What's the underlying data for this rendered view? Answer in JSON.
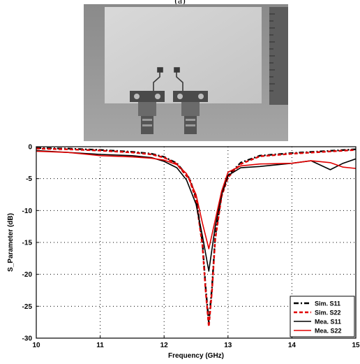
{
  "figure": {
    "label": "(a)"
  },
  "photo": {
    "icon": "antenna-prototype-photo"
  },
  "chart_data": {
    "type": "line",
    "title": "",
    "xlabel": "Frequency (GHz)",
    "ylabel": "S_Parameter (dB)",
    "xlim": [
      10,
      15
    ],
    "ylim": [
      -30,
      0
    ],
    "xticks": [
      10,
      11,
      12,
      13,
      14,
      15
    ],
    "yticks": [
      0,
      -5,
      -10,
      -15,
      -20,
      -25,
      -30
    ],
    "grid": "dotted",
    "legend_position": "bottom-right",
    "series": [
      {
        "name": "Sim. S11",
        "color": "#000000",
        "dash": "dashdot",
        "x": [
          10,
          10.5,
          11,
          11.5,
          11.8,
          12,
          12.2,
          12.4,
          12.5,
          12.6,
          12.65,
          12.7,
          12.75,
          12.8,
          12.9,
          13,
          13.2,
          13.5,
          14,
          14.5,
          15
        ],
        "y": [
          -0.2,
          -0.3,
          -0.5,
          -0.8,
          -1.1,
          -1.6,
          -2.6,
          -5,
          -8,
          -15,
          -22,
          -27.5,
          -22,
          -14,
          -7.5,
          -4.5,
          -2.5,
          -1.4,
          -1,
          -0.7,
          -0.4
        ]
      },
      {
        "name": "Sim. S22",
        "color": "#e00000",
        "dash": "dashed",
        "x": [
          10,
          10.5,
          11,
          11.5,
          11.8,
          12,
          12.2,
          12.4,
          12.5,
          12.6,
          12.65,
          12.7,
          12.75,
          12.8,
          12.9,
          13,
          13.2,
          13.5,
          14,
          14.5,
          15
        ],
        "y": [
          -0.3,
          -0.4,
          -0.6,
          -0.9,
          -1.2,
          -1.7,
          -2.7,
          -5.2,
          -8.3,
          -15.5,
          -22.5,
          -28.2,
          -22.5,
          -14.5,
          -7.8,
          -4.8,
          -2.7,
          -1.5,
          -1.1,
          -0.8,
          -0.5
        ]
      },
      {
        "name": "Mea. S11",
        "color": "#000000",
        "dash": "solid",
        "x": [
          10,
          10.5,
          11,
          11.5,
          11.8,
          12,
          12.2,
          12.35,
          12.5,
          12.6,
          12.7,
          12.8,
          12.9,
          13,
          13.2,
          13.5,
          14,
          14.3,
          14.6,
          14.8,
          15
        ],
        "y": [
          -0.6,
          -0.9,
          -1.2,
          -1.4,
          -1.7,
          -2.3,
          -3.3,
          -5.2,
          -9,
          -14,
          -19.5,
          -12.5,
          -7.5,
          -4.5,
          -3.3,
          -3.1,
          -2.6,
          -2.2,
          -3.6,
          -2.6,
          -1.9
        ]
      },
      {
        "name": "Mea. S22",
        "color": "#e00000",
        "dash": "solid",
        "x": [
          10,
          10.5,
          11,
          11.5,
          11.8,
          12,
          12.2,
          12.35,
          12.5,
          12.6,
          12.7,
          12.8,
          12.9,
          13,
          13.2,
          13.5,
          14,
          14.3,
          14.6,
          14.8,
          15
        ],
        "y": [
          -0.7,
          -0.9,
          -1.4,
          -1.6,
          -1.8,
          -2.1,
          -2.8,
          -4.2,
          -7.5,
          -12,
          -16,
          -11.5,
          -7,
          -4,
          -3,
          -2.7,
          -2.6,
          -2.2,
          -2.5,
          -3.2,
          -3.4
        ]
      }
    ]
  }
}
